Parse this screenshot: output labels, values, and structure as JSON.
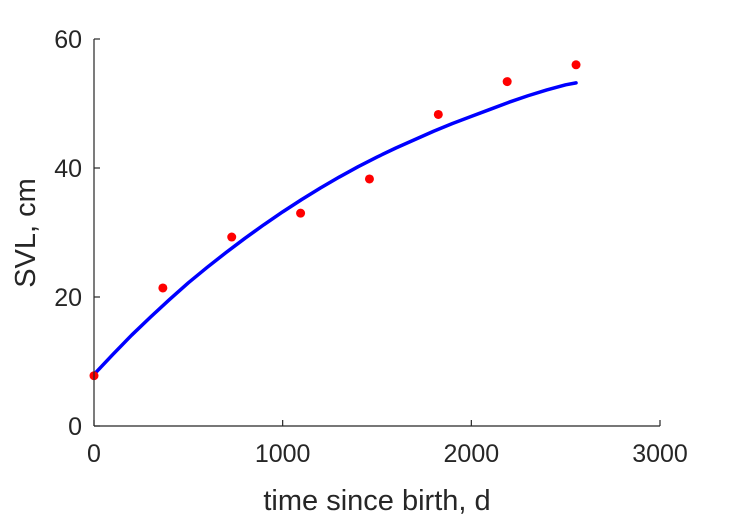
{
  "chart_data": {
    "type": "scatter",
    "title": "",
    "xlabel": "time since birth, d",
    "ylabel": "SVL, cm",
    "xlim": [
      0,
      3000
    ],
    "ylim": [
      0,
      60
    ],
    "xticks": [
      0,
      1000,
      2000,
      3000
    ],
    "yticks": [
      0,
      20,
      40,
      60
    ],
    "xtick_labels": [
      "0",
      "1000",
      "2000",
      "3000"
    ],
    "ytick_labels": [
      "0",
      "20",
      "40",
      "60"
    ],
    "grid": false,
    "legend": "none",
    "series": [
      {
        "kind": "scatter",
        "color": "#ff0000",
        "x": [
          0,
          365,
          730,
          1095,
          1460,
          1825,
          2190,
          2555
        ],
        "y": [
          7.8,
          21.4,
          29.3,
          33.0,
          38.3,
          48.3,
          53.4,
          56.0
        ]
      },
      {
        "kind": "line",
        "color": "#0000ff",
        "x": [
          0,
          100,
          200,
          300,
          400,
          500,
          600,
          700,
          800,
          900,
          1000,
          1100,
          1200,
          1300,
          1400,
          1500,
          1600,
          1700,
          1800,
          1900,
          2000,
          2100,
          2200,
          2300,
          2400,
          2500,
          2555
        ],
        "y": [
          8.0,
          11.1,
          14.1,
          16.9,
          19.6,
          22.2,
          24.6,
          26.9,
          29.1,
          31.2,
          33.2,
          35.1,
          36.9,
          38.6,
          40.2,
          41.7,
          43.1,
          44.4,
          45.7,
          46.9,
          48.0,
          49.1,
          50.2,
          51.2,
          52.1,
          52.9,
          53.2
        ]
      }
    ]
  }
}
